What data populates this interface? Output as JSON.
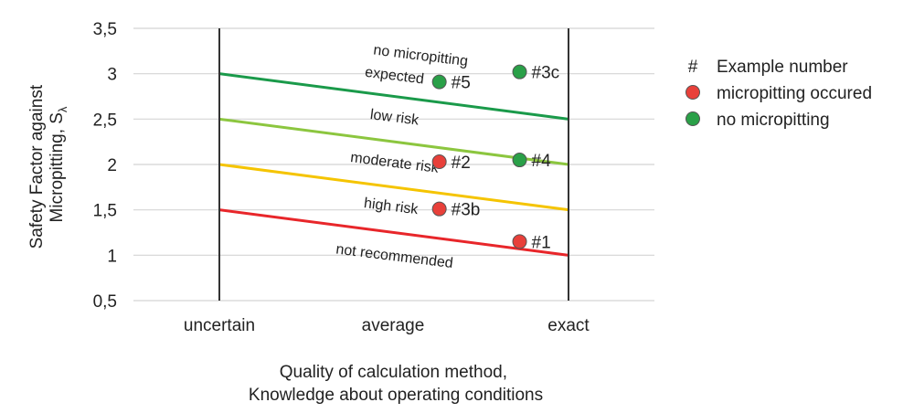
{
  "chart_data": {
    "type": "scatter",
    "title": "",
    "xlabel": [
      "Quality of calculation method,",
      "Knowledge about operating conditions"
    ],
    "ylabel": [
      "Safety Factor against",
      "Micropitting, S",
      "λ"
    ],
    "categories": [
      "uncertain",
      "average",
      "exact"
    ],
    "ylim": [
      0.5,
      3.5
    ],
    "yticks": [
      "0,5",
      "1",
      "1,5",
      "2",
      "2,5",
      "3",
      "3,5"
    ],
    "ytick_values": [
      0.5,
      1,
      1.5,
      2,
      2.5,
      3,
      3.5
    ],
    "grid": true,
    "legend_position": "right",
    "boundaries": [
      {
        "name": "no-micropitting-boundary",
        "color": "#1a9a4a",
        "x": [
          1,
          3
        ],
        "y": [
          3.0,
          2.5
        ]
      },
      {
        "name": "low-risk-boundary",
        "color": "#8cc63f",
        "x": [
          1,
          3
        ],
        "y": [
          2.5,
          2.0
        ]
      },
      {
        "name": "moderate-risk-boundary",
        "color": "#f5c400",
        "x": [
          1,
          3
        ],
        "y": [
          2.0,
          1.5
        ]
      },
      {
        "name": "high-risk-boundary",
        "color": "#e8262a",
        "x": [
          1,
          3
        ],
        "y": [
          1.5,
          1.0
        ]
      }
    ],
    "zones": [
      {
        "text": "no micropitting",
        "x": 2.15,
        "y": 3.15
      },
      {
        "text": "expected",
        "x": 2.0,
        "y": 2.93
      },
      {
        "text": "low risk",
        "x": 2.0,
        "y": 2.47
      },
      {
        "text": "moderate risk",
        "x": 2.0,
        "y": 1.97
      },
      {
        "text": "high risk",
        "x": 1.98,
        "y": 1.49
      },
      {
        "text": "not recommended",
        "x": 2.0,
        "y": 0.94
      }
    ],
    "points": [
      {
        "label": "#5",
        "x": 2.26,
        "y": 2.91,
        "status": "no micropitting"
      },
      {
        "label": "#3c",
        "x": 2.72,
        "y": 3.02,
        "status": "no micropitting"
      },
      {
        "label": "#2",
        "x": 2.26,
        "y": 2.03,
        "status": "micropitting occured"
      },
      {
        "label": "#4",
        "x": 2.72,
        "y": 2.05,
        "status": "no micropitting"
      },
      {
        "label": "#3b",
        "x": 2.26,
        "y": 1.51,
        "status": "micropitting occured"
      },
      {
        "label": "#1",
        "x": 2.72,
        "y": 1.15,
        "status": "micropitting occured"
      }
    ],
    "legend": [
      {
        "symbol": "#",
        "label": "Example number"
      },
      {
        "symbol": "red-dot",
        "label": "micropitting occured",
        "color": "#e8403a"
      },
      {
        "symbol": "green-dot",
        "label": "no micropitting",
        "color": "#2aa048"
      }
    ],
    "colors": {
      "micropitting occured": "#e8403a",
      "no micropitting": "#2aa048"
    }
  }
}
